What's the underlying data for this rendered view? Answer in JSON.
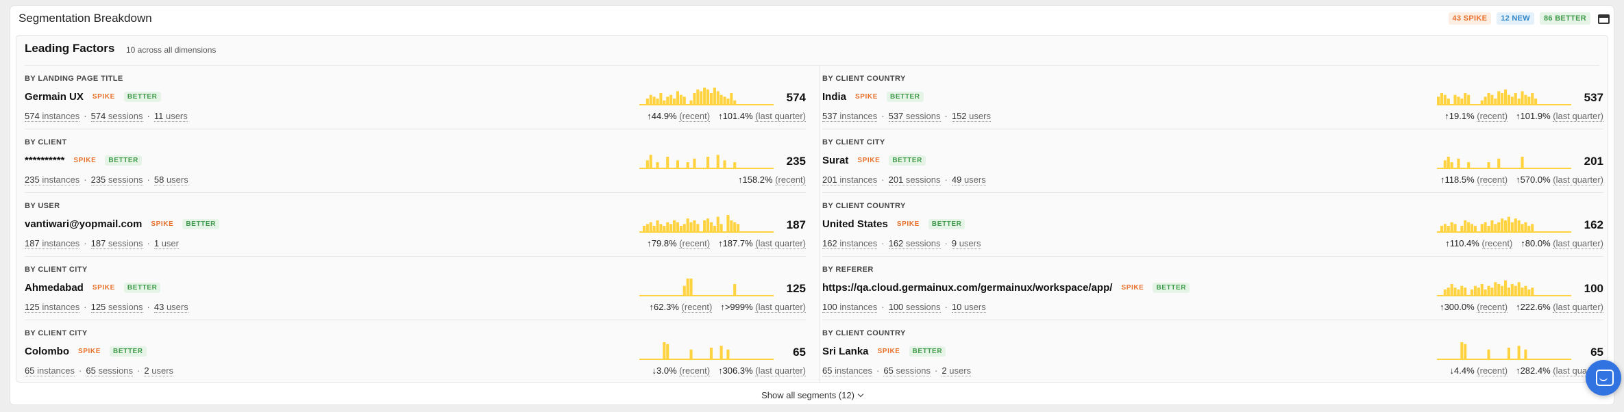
{
  "header": {
    "title": "Segmentation Breakdown",
    "badges": {
      "spike": "43 SPIKE",
      "new": "12 NEW",
      "better": "86 BETTER"
    }
  },
  "leading": {
    "title": "Leading Factors",
    "subtitle": "10 across all dimensions"
  },
  "tags": {
    "spike": "SPIKE",
    "better": "BETTER"
  },
  "colors": {
    "spark": "#ffd23f",
    "spike": "#e8702a",
    "better": "#3f9a4a",
    "new": "#2f86c9"
  },
  "rows": [
    {
      "dimension": "BY LANDING PAGE TITLE",
      "name": "Germain UX",
      "count": "574",
      "instances": "574",
      "sessions": "574",
      "users": "11",
      "users_label": "users",
      "recent": "44.9%",
      "recent_dir": "up",
      "quarter": "101.4%",
      "quarter_dir": "up",
      "spark": [
        0,
        0,
        3,
        5,
        4,
        3,
        6,
        2,
        4,
        5,
        3,
        7,
        5,
        4,
        0,
        2,
        6,
        8,
        7,
        9,
        8,
        6,
        9,
        7,
        5,
        4,
        3,
        6,
        2,
        0,
        0,
        0,
        0,
        0,
        0,
        0,
        0,
        0,
        0,
        0
      ]
    },
    {
      "dimension": "BY CLIENT COUNTRY",
      "name": "India",
      "count": "537",
      "instances": "537",
      "sessions": "537",
      "users": "152",
      "users_label": "users",
      "recent": "19.1%",
      "recent_dir": "up",
      "quarter": "101.9%",
      "quarter_dir": "up",
      "spark": [
        4,
        6,
        5,
        3,
        0,
        5,
        4,
        3,
        6,
        5,
        0,
        0,
        0,
        2,
        4,
        6,
        5,
        3,
        7,
        6,
        8,
        5,
        4,
        6,
        3,
        7,
        5,
        4,
        6,
        3,
        0,
        0,
        0,
        0,
        0,
        0,
        0,
        0,
        0,
        0
      ]
    },
    {
      "dimension": "BY CLIENT",
      "name": "**********",
      "count": "235",
      "instances": "235",
      "sessions": "235",
      "users": "58",
      "users_label": "users",
      "recent": "158.2%",
      "recent_dir": "up",
      "quarter": "",
      "quarter_dir": "",
      "spark": [
        0,
        0,
        4,
        7,
        0,
        3,
        0,
        0,
        6,
        0,
        0,
        4,
        0,
        0,
        3,
        0,
        5,
        0,
        0,
        0,
        6,
        0,
        0,
        7,
        0,
        4,
        0,
        0,
        3,
        0,
        0,
        0,
        0,
        0,
        0,
        0,
        0,
        0,
        0,
        0
      ]
    },
    {
      "dimension": "BY CLIENT CITY",
      "name": "Surat",
      "count": "201",
      "instances": "201",
      "sessions": "201",
      "users": "49",
      "users_label": "users",
      "recent": "118.5%",
      "recent_dir": "up",
      "quarter": "570.0%",
      "quarter_dir": "up",
      "spark": [
        0,
        0,
        4,
        6,
        3,
        0,
        5,
        0,
        0,
        3,
        0,
        0,
        0,
        0,
        0,
        3,
        0,
        0,
        5,
        0,
        0,
        0,
        0,
        0,
        0,
        6,
        0,
        0,
        0,
        0,
        0,
        0,
        0,
        0,
        0,
        0,
        0,
        0,
        0,
        0
      ]
    },
    {
      "dimension": "BY USER",
      "name": "vantiwari@yopmail.com",
      "count": "187",
      "instances": "187",
      "sessions": "187",
      "users": "1",
      "users_label": "user",
      "recent": "79.8%",
      "recent_dir": "up",
      "quarter": "187.7%",
      "quarter_dir": "up",
      "spark": [
        0,
        3,
        4,
        5,
        3,
        6,
        4,
        3,
        5,
        4,
        6,
        5,
        3,
        4,
        7,
        5,
        6,
        4,
        0,
        6,
        7,
        5,
        3,
        8,
        4,
        0,
        9,
        6,
        5,
        4,
        0,
        0,
        0,
        0,
        0,
        0,
        0,
        0,
        0,
        0
      ]
    },
    {
      "dimension": "BY CLIENT COUNTRY",
      "name": "United States",
      "count": "162",
      "instances": "162",
      "sessions": "162",
      "users": "9",
      "users_label": "users",
      "recent": "110.4%",
      "recent_dir": "up",
      "quarter": "80.0%",
      "quarter_dir": "up",
      "spark": [
        0,
        3,
        4,
        3,
        5,
        4,
        0,
        3,
        6,
        5,
        4,
        3,
        0,
        4,
        5,
        3,
        6,
        4,
        5,
        7,
        6,
        8,
        5,
        7,
        6,
        4,
        5,
        3,
        4,
        0,
        0,
        0,
        0,
        0,
        0,
        0,
        0,
        0,
        0,
        0
      ]
    },
    {
      "dimension": "BY CLIENT CITY",
      "name": "Ahmedabad",
      "count": "125",
      "instances": "125",
      "sessions": "125",
      "users": "43",
      "users_label": "users",
      "recent": "62.3%",
      "recent_dir": "up",
      "quarter": ">999%",
      "quarter_dir": "up",
      "spark": [
        0,
        0,
        0,
        0,
        0,
        0,
        0,
        0,
        0,
        0,
        0,
        0,
        0,
        5,
        9,
        9,
        0,
        0,
        0,
        0,
        0,
        0,
        0,
        0,
        0,
        0,
        0,
        0,
        6,
        0,
        0,
        0,
        0,
        0,
        0,
        0,
        0,
        0,
        0,
        0
      ]
    },
    {
      "dimension": "BY REFERER",
      "name": "https://qa.cloud.germainux.com/germainux/workspace/app/",
      "count": "100",
      "instances": "100",
      "sessions": "100",
      "users": "10",
      "users_label": "users",
      "recent": "300.0%",
      "recent_dir": "up",
      "quarter": "222.6%",
      "quarter_dir": "up",
      "spark": [
        0,
        0,
        3,
        4,
        6,
        4,
        3,
        5,
        4,
        0,
        3,
        5,
        4,
        6,
        3,
        5,
        4,
        7,
        6,
        5,
        8,
        4,
        6,
        5,
        7,
        4,
        5,
        3,
        4,
        0,
        0,
        0,
        0,
        0,
        0,
        0,
        0,
        0,
        0,
        0
      ]
    },
    {
      "dimension": "BY CLIENT CITY",
      "name": "Colombo",
      "count": "65",
      "instances": "65",
      "sessions": "65",
      "users": "2",
      "users_label": "users",
      "recent": "3.0%",
      "recent_dir": "down",
      "quarter": "306.3%",
      "quarter_dir": "up",
      "spark": [
        0,
        0,
        0,
        0,
        0,
        0,
        0,
        9,
        8,
        0,
        0,
        0,
        0,
        0,
        0,
        5,
        0,
        0,
        0,
        0,
        0,
        6,
        0,
        0,
        7,
        0,
        5,
        0,
        0,
        0,
        0,
        0,
        0,
        0,
        0,
        0,
        0,
        0,
        0,
        0
      ]
    },
    {
      "dimension": "BY CLIENT COUNTRY",
      "name": "Sri Lanka",
      "count": "65",
      "instances": "65",
      "sessions": "65",
      "users": "2",
      "users_label": "users",
      "recent": "4.4%",
      "recent_dir": "down",
      "quarter": "282.4%",
      "quarter_dir": "up",
      "spark": [
        0,
        0,
        0,
        0,
        0,
        0,
        0,
        9,
        8,
        0,
        0,
        0,
        0,
        0,
        0,
        5,
        0,
        0,
        0,
        0,
        0,
        6,
        0,
        0,
        7,
        0,
        5,
        0,
        0,
        0,
        0,
        0,
        0,
        0,
        0,
        0,
        0,
        0,
        0,
        0
      ]
    }
  ],
  "labels": {
    "instances": "instances",
    "sessions": "sessions",
    "recent": "(recent)",
    "quarter": "(last quarter)"
  },
  "footer": {
    "show_all": "Show all segments (12)"
  }
}
